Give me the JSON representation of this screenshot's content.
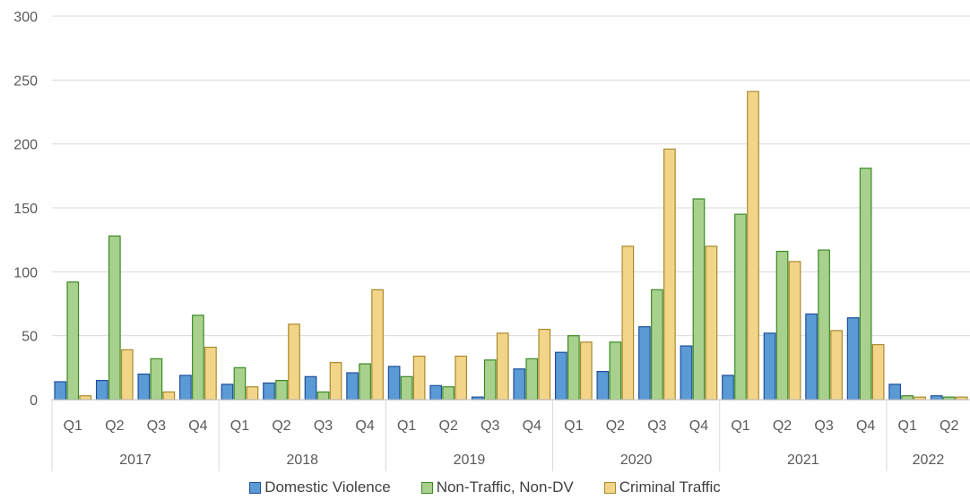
{
  "chart_data": {
    "type": "bar",
    "years": [
      "2017",
      "2018",
      "2019",
      "2020",
      "2021",
      "2022"
    ],
    "quarters_per_year": [
      4,
      4,
      4,
      4,
      4,
      2
    ],
    "categories": [
      "Q1",
      "Q2",
      "Q3",
      "Q4",
      "Q1",
      "Q2",
      "Q3",
      "Q4",
      "Q1",
      "Q2",
      "Q3",
      "Q4",
      "Q1",
      "Q2",
      "Q3",
      "Q4",
      "Q1",
      "Q2",
      "Q3",
      "Q4",
      "Q1",
      "Q2"
    ],
    "series": [
      {
        "name": "Domestic Violence",
        "color": "#5B9BD5",
        "border": "#1F4E9A",
        "values": [
          14,
          15,
          20,
          19,
          12,
          13,
          18,
          21,
          26,
          11,
          2,
          24,
          37,
          22,
          57,
          42,
          19,
          52,
          67,
          64,
          12,
          3
        ]
      },
      {
        "name": "Non-Traffic, Non-DV",
        "color": "#A9D18E",
        "border": "#3A8A22",
        "values": [
          92,
          128,
          32,
          66,
          25,
          15,
          6,
          28,
          18,
          10,
          31,
          32,
          50,
          45,
          86,
          157,
          145,
          116,
          117,
          181,
          3,
          2
        ]
      },
      {
        "name": "Criminal Traffic",
        "color": "#F3D58A",
        "border": "#A88A2E",
        "values": [
          3,
          39,
          6,
          41,
          10,
          59,
          29,
          86,
          34,
          34,
          52,
          55,
          45,
          120,
          196,
          120,
          241,
          108,
          54,
          43,
          2,
          2
        ]
      }
    ],
    "ylim": [
      0,
      300
    ],
    "yticks": [
      "0",
      "50",
      "100",
      "150",
      "200",
      "250",
      "300"
    ],
    "legend_position": "bottom",
    "grid": true
  }
}
